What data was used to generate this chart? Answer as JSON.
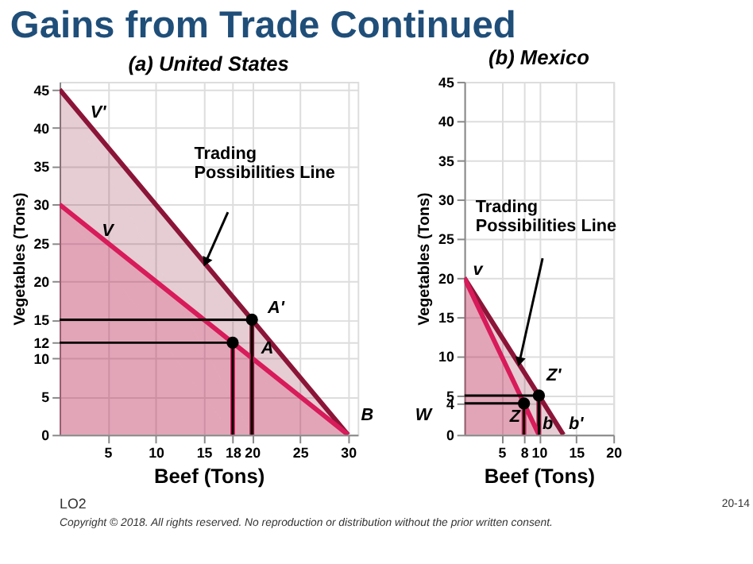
{
  "chart_data": [
    {
      "type": "line",
      "title": "Gains from Trade Continued",
      "subtitle": "(a) United States",
      "xlabel": "Beef (Tons)",
      "ylabel": "Vegetables (Tons)",
      "xlim": [
        0,
        31
      ],
      "ylim": [
        0,
        46
      ],
      "xticks": [
        5,
        10,
        15,
        18,
        20,
        25,
        30
      ],
      "yticks": [
        0,
        5,
        10,
        12,
        15,
        20,
        25,
        30,
        35,
        40,
        45
      ],
      "grid": true,
      "series": [
        {
          "type": "area",
          "color": "#8b1538",
          "x": [
            0,
            20,
            30
          ],
          "values": [
            45,
            15,
            0
          ]
        },
        {
          "type": "area",
          "color": "#d81b5a",
          "x": [
            0,
            18,
            30
          ],
          "values": [
            30,
            12,
            0
          ]
        },
        {
          "color": "#000000",
          "x": [
            0,
            20,
            20
          ],
          "values": [
            15,
            15,
            0
          ]
        },
        {
          "color": "#000000",
          "x": [
            0,
            18,
            18
          ],
          "values": [
            12,
            12,
            0
          ]
        },
        {
          "type": "scatter",
          "color": "#000000",
          "x": [
            18,
            20
          ],
          "values": [
            12,
            15
          ]
        }
      ],
      "annotations": [
        "Trading Possibilities Line",
        "V'",
        "V",
        "A'",
        "A",
        "B",
        "LO2",
        "20-14",
        "Copyright © 2018. All rights reserved. No reproduction or distribution without the prior written consent."
      ]
    },
    {
      "type": "line",
      "title": "(b) Mexico",
      "xlabel": "Beef (Tons)",
      "ylabel": "Vegetables (Tons)",
      "xlim": [
        0,
        20
      ],
      "ylim": [
        0,
        45
      ],
      "xticks": [
        5,
        8,
        10,
        15,
        20
      ],
      "yticks": [
        0,
        4,
        5,
        10,
        15,
        20,
        25,
        30,
        35,
        40,
        45
      ],
      "grid": true,
      "series": [
        {
          "type": "area",
          "color": "#8b1538",
          "x": [
            0,
            10,
            13.3
          ],
          "values": [
            20,
            5,
            0
          ]
        },
        {
          "type": "area",
          "color": "#d81b5a",
          "x": [
            0,
            8,
            10
          ],
          "values": [
            20,
            4,
            0
          ]
        },
        {
          "color": "#000000",
          "x": [
            0,
            10,
            10
          ],
          "values": [
            5,
            5,
            0
          ]
        },
        {
          "color": "#000000",
          "x": [
            0,
            8,
            8
          ],
          "values": [
            4,
            4,
            0
          ]
        },
        {
          "type": "scatter",
          "color": "#000000",
          "x": [
            8,
            10
          ],
          "values": [
            4,
            5
          ]
        }
      ],
      "annotations": [
        "Trading Possibilities Line",
        "v",
        "Z'",
        "Z",
        "b",
        "b'",
        "W"
      ]
    }
  ]
}
